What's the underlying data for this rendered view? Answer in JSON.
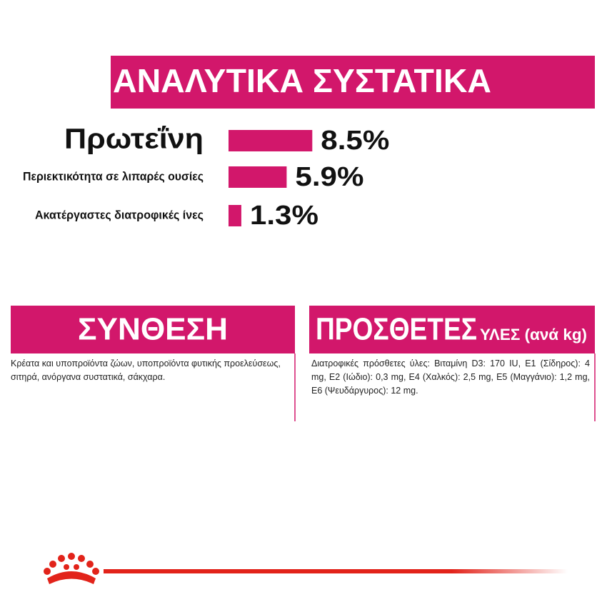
{
  "chart_data": {
    "type": "bar",
    "title": "ΑΝΑΛΥΤΙΚΑ ΣΥΣΤΑΤΙΚΑ",
    "categories": [
      "Πρωτεΐνη",
      "Περιεκτικότητα σε λιπαρές ουσίες",
      "Ακατέργαστες διατροφικές ίνες"
    ],
    "values": [
      8.5,
      5.9,
      1.3
    ],
    "value_labels": [
      "8.5%",
      "5.9%",
      "1.3%"
    ],
    "color": "#d2176b"
  },
  "composition": {
    "title": "ΣΥΝΘΕΣΗ",
    "text": "Κρέατα και υποπροϊόντα ζώων, υποπροϊόντα φυτικής προελεύσεως, σιτηρά, ανόργανα συστατικά, σάκχαρα."
  },
  "additives": {
    "title": "ΠΡΟΣΘΕΤΕΣ",
    "subtitle": "ΥΛΕΣ (ανά kg)",
    "text": "Διατροφικές πρόσθετες ύλες: Βιταμίνη D3: 170 IU, E1 (Σίδηρος): 4 mg, E2 (Ιώδιο): 0,3 mg, E4 (Χαλκός): 2,5 mg, E5 (Μαγγάνιο): 1,2 mg, E6 (Ψευδάργυρος): 12 mg."
  }
}
